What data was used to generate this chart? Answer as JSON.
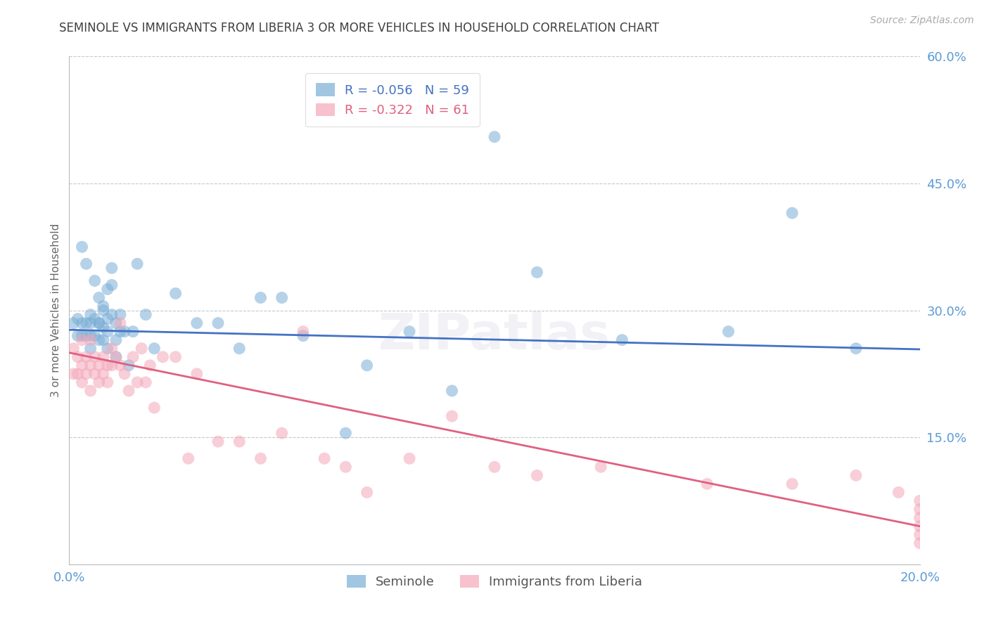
{
  "title": "SEMINOLE VS IMMIGRANTS FROM LIBERIA 3 OR MORE VEHICLES IN HOUSEHOLD CORRELATION CHART",
  "source": "Source: ZipAtlas.com",
  "ylabel": "3 or more Vehicles in Household",
  "xmin": 0.0,
  "xmax": 0.2,
  "ymin": 0.0,
  "ymax": 0.6,
  "yticks": [
    0.0,
    0.15,
    0.3,
    0.45,
    0.6
  ],
  "ytick_labels": [
    "",
    "15.0%",
    "30.0%",
    "45.0%",
    "60.0%"
  ],
  "xticks": [
    0.0,
    0.05,
    0.1,
    0.15,
    0.2
  ],
  "xtick_labels": [
    "0.0%",
    "",
    "",
    "",
    "20.0%"
  ],
  "legend_label1": "Seminole",
  "legend_label2": "Immigrants from Liberia",
  "blue_color": "#7aaed6",
  "pink_color": "#f4a7b9",
  "line_blue": "#4472c4",
  "line_pink": "#e06080",
  "title_color": "#404040",
  "axis_label_color": "#666666",
  "axis_tick_color": "#5b9bd5",
  "background_color": "#ffffff",
  "grid_color": "#c8c8c8",
  "watermark": "ZIPatlas",
  "seminole_x": [
    0.001,
    0.002,
    0.002,
    0.003,
    0.003,
    0.004,
    0.004,
    0.005,
    0.005,
    0.005,
    0.006,
    0.006,
    0.007,
    0.007,
    0.007,
    0.008,
    0.008,
    0.008,
    0.009,
    0.009,
    0.009,
    0.01,
    0.01,
    0.011,
    0.011,
    0.012,
    0.012,
    0.013,
    0.014,
    0.015,
    0.016,
    0.018,
    0.02,
    0.025,
    0.03,
    0.035,
    0.04,
    0.045,
    0.05,
    0.055,
    0.065,
    0.07,
    0.08,
    0.09,
    0.1,
    0.11,
    0.13,
    0.155,
    0.17,
    0.185,
    0.003,
    0.004,
    0.005,
    0.006,
    0.007,
    0.008,
    0.009,
    0.01,
    0.011
  ],
  "seminole_y": [
    0.285,
    0.29,
    0.27,
    0.285,
    0.27,
    0.285,
    0.27,
    0.285,
    0.27,
    0.255,
    0.29,
    0.27,
    0.285,
    0.285,
    0.265,
    0.3,
    0.28,
    0.265,
    0.29,
    0.275,
    0.255,
    0.35,
    0.33,
    0.285,
    0.265,
    0.295,
    0.275,
    0.275,
    0.235,
    0.275,
    0.355,
    0.295,
    0.255,
    0.32,
    0.285,
    0.285,
    0.255,
    0.315,
    0.315,
    0.27,
    0.155,
    0.235,
    0.275,
    0.205,
    0.505,
    0.345,
    0.265,
    0.275,
    0.415,
    0.255,
    0.375,
    0.355,
    0.295,
    0.335,
    0.315,
    0.305,
    0.325,
    0.295,
    0.245
  ],
  "liberia_x": [
    0.001,
    0.001,
    0.002,
    0.002,
    0.003,
    0.003,
    0.003,
    0.004,
    0.004,
    0.005,
    0.005,
    0.005,
    0.006,
    0.006,
    0.007,
    0.007,
    0.008,
    0.008,
    0.009,
    0.009,
    0.01,
    0.01,
    0.011,
    0.012,
    0.012,
    0.013,
    0.014,
    0.015,
    0.016,
    0.017,
    0.018,
    0.019,
    0.02,
    0.022,
    0.025,
    0.028,
    0.03,
    0.035,
    0.04,
    0.045,
    0.05,
    0.055,
    0.06,
    0.065,
    0.07,
    0.08,
    0.09,
    0.1,
    0.11,
    0.125,
    0.15,
    0.17,
    0.185,
    0.195,
    0.2,
    0.2,
    0.2,
    0.2,
    0.2,
    0.2
  ],
  "liberia_y": [
    0.255,
    0.225,
    0.245,
    0.225,
    0.265,
    0.235,
    0.215,
    0.245,
    0.225,
    0.265,
    0.235,
    0.205,
    0.245,
    0.225,
    0.235,
    0.215,
    0.245,
    0.225,
    0.235,
    0.215,
    0.255,
    0.235,
    0.245,
    0.285,
    0.235,
    0.225,
    0.205,
    0.245,
    0.215,
    0.255,
    0.215,
    0.235,
    0.185,
    0.245,
    0.245,
    0.125,
    0.225,
    0.145,
    0.145,
    0.125,
    0.155,
    0.275,
    0.125,
    0.115,
    0.085,
    0.125,
    0.175,
    0.115,
    0.105,
    0.115,
    0.095,
    0.095,
    0.105,
    0.085,
    0.075,
    0.065,
    0.055,
    0.045,
    0.035,
    0.025
  ],
  "blue_trendline_x": [
    0.0,
    0.2
  ],
  "blue_trendline_y": [
    0.277,
    0.254
  ],
  "pink_trendline_x": [
    0.0,
    0.2
  ],
  "pink_trendline_y": [
    0.25,
    0.045
  ]
}
